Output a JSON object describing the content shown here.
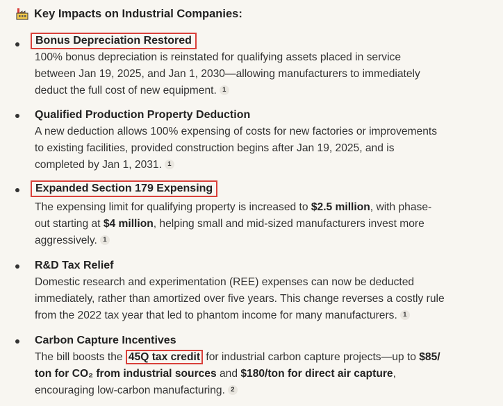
{
  "heading": {
    "icon": "factory-icon",
    "text": "Key Impacts on Industrial Companies:"
  },
  "items": [
    {
      "title": "Bonus Depreciation Restored",
      "lines": [
        "100% bonus depreciation is reinstated for qualifying assets placed in service",
        "between Jan 19, 2025, and Jan 1, 2030—allowing manufacturers to immediately",
        "deduct the full cost of new equipment."
      ],
      "cite": "1"
    },
    {
      "title": "Qualified Production Property Deduction",
      "lines": [
        "A new deduction allows 100% expensing of costs for new factories or improvements",
        "to existing facilities, provided construction begins after Jan 19, 2025, and is",
        "completed by Jan 1, 2031."
      ],
      "cite": "1"
    },
    {
      "title": "Expanded Section 179 Expensing",
      "line1_pre": "The expensing limit for qualifying property is increased to ",
      "line1_bold": "$2.5 million",
      "line1_post": ", with phase-",
      "line2_pre": "out starting at ",
      "line2_bold": "$4 million",
      "line2_post": ", helping small and mid-sized manufacturers invest more",
      "line3": "aggressively.",
      "cite": "1"
    },
    {
      "title": "R&D Tax Relief",
      "lines": [
        "Domestic research and experimentation (REE) expenses can now be deducted",
        "immediately, rather than amortized over five years. This change reverses a costly rule",
        "from the 2022 tax year that led to phantom income for many manufacturers."
      ],
      "cite": "1"
    },
    {
      "title": "Carbon Capture Incentives",
      "line1_pre": "The bill boosts the ",
      "line1_boxed": "45Q tax credit",
      "line1_mid": " for industrial carbon capture projects—up to ",
      "line1_bold": "$85/",
      "line2_bold1": "ton for CO₂ from industrial sources",
      "line2_mid": " and ",
      "line2_bold2": "$180/ton for direct air capture",
      "line2_post": ",",
      "line3": "encouraging low-carbon manufacturing.",
      "cite": "2"
    }
  ]
}
